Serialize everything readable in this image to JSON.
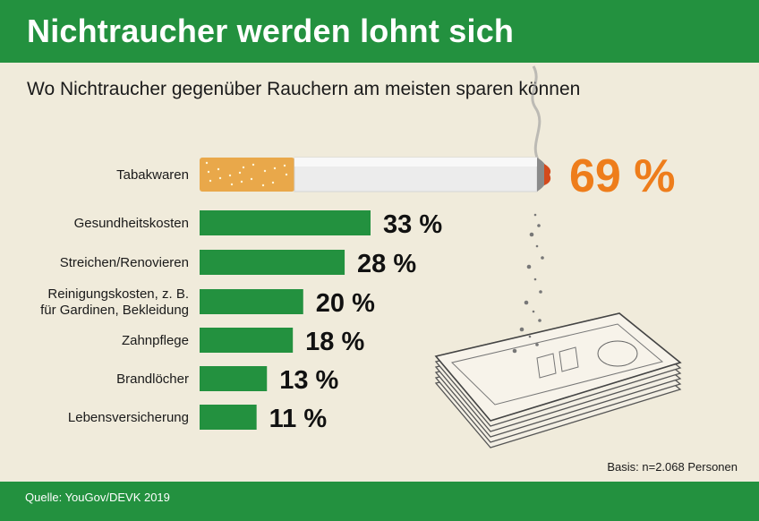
{
  "header": {
    "title": "Nichtraucher werden lohnt sich"
  },
  "subtitle": "Wo Nichtraucher gegenüber Rauchern am meisten sparen können",
  "basis": "Basis: n=2.068 Personen",
  "source": "Quelle: YouGov/DEVK 2019",
  "colors": {
    "green": "#23913f",
    "highlight": "#ee7d1b",
    "background": "#f0ebdb"
  },
  "chart_data": {
    "type": "bar",
    "orientation": "horizontal",
    "categories": [
      "Tabakwaren",
      "Gesundheitskosten",
      "Streichen/Renovieren",
      "Reinigungskosten, z. B.\nfür Gardinen, Bekleidung",
      "Zahnpflege",
      "Brandlöcher",
      "Lebensversicherung"
    ],
    "values": [
      69,
      33,
      28,
      20,
      18,
      13,
      11
    ],
    "value_labels": [
      "69 %",
      "33 %",
      "28 %",
      "20 %",
      "18 %",
      "13 %",
      "11 %"
    ],
    "unit": "%",
    "xlim": [
      0,
      69
    ]
  }
}
